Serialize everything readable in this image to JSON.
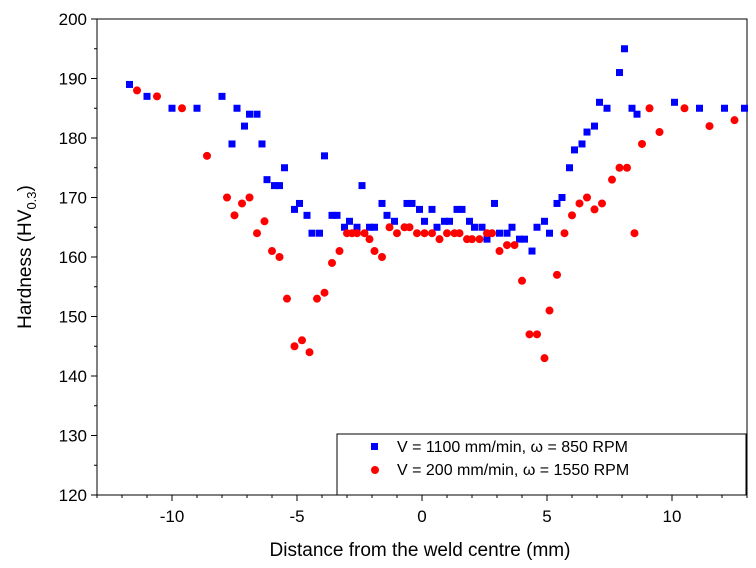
{
  "chart_data": {
    "type": "scatter",
    "title": "",
    "xlabel": "Distance from the weld centre (mm)",
    "ylabel": {
      "main": "Hardness (HV",
      "subscript": "0.3",
      "close": ")"
    },
    "xlim": [
      -13,
      13
    ],
    "ylim": [
      120,
      200
    ],
    "xticks": [
      -10,
      -5,
      0,
      5,
      10
    ],
    "yticks": [
      120,
      130,
      140,
      150,
      160,
      170,
      180,
      190,
      200
    ],
    "xtick_labels": [
      "-10",
      "-5",
      "0",
      "5",
      "10"
    ],
    "ytick_labels": [
      "120",
      "130",
      "140",
      "150",
      "160",
      "170",
      "180",
      "190",
      "200"
    ],
    "grid": false,
    "legend_position": "bottom-right",
    "series": [
      {
        "name": "V = 1100 mm/min, ω = 850 RPM",
        "marker": "square",
        "color": "#0000ff",
        "points": [
          [
            -11.7,
            189
          ],
          [
            -11.0,
            187
          ],
          [
            -10.0,
            185
          ],
          [
            -9.0,
            185
          ],
          [
            -8.0,
            187
          ],
          [
            -7.6,
            179
          ],
          [
            -7.4,
            185
          ],
          [
            -7.1,
            182
          ],
          [
            -6.9,
            184
          ],
          [
            -6.6,
            184
          ],
          [
            -6.4,
            179
          ],
          [
            -6.2,
            173
          ],
          [
            -5.9,
            172
          ],
          [
            -5.7,
            172
          ],
          [
            -5.5,
            175
          ],
          [
            -5.1,
            168
          ],
          [
            -4.9,
            169
          ],
          [
            -4.6,
            167
          ],
          [
            -4.4,
            164
          ],
          [
            -4.1,
            164
          ],
          [
            -3.9,
            177
          ],
          [
            -3.6,
            167
          ],
          [
            -3.4,
            167
          ],
          [
            -3.1,
            165
          ],
          [
            -2.9,
            166
          ],
          [
            -2.6,
            165
          ],
          [
            -2.4,
            172
          ],
          [
            -2.1,
            165
          ],
          [
            -1.9,
            165
          ],
          [
            -1.6,
            169
          ],
          [
            -1.4,
            167
          ],
          [
            -1.1,
            166
          ],
          [
            -0.6,
            169
          ],
          [
            -0.4,
            169
          ],
          [
            -0.1,
            168
          ],
          [
            0.1,
            166
          ],
          [
            0.4,
            168
          ],
          [
            0.6,
            165
          ],
          [
            0.9,
            166
          ],
          [
            1.1,
            166
          ],
          [
            1.4,
            168
          ],
          [
            1.6,
            168
          ],
          [
            1.9,
            166
          ],
          [
            2.1,
            165
          ],
          [
            2.4,
            165
          ],
          [
            2.6,
            163
          ],
          [
            2.9,
            169
          ],
          [
            3.1,
            164
          ],
          [
            3.4,
            164
          ],
          [
            3.6,
            165
          ],
          [
            3.9,
            163
          ],
          [
            4.1,
            163
          ],
          [
            4.4,
            161
          ],
          [
            4.6,
            165
          ],
          [
            4.9,
            166
          ],
          [
            5.1,
            164
          ],
          [
            5.4,
            169
          ],
          [
            5.6,
            170
          ],
          [
            5.9,
            175
          ],
          [
            6.1,
            178
          ],
          [
            6.4,
            179
          ],
          [
            6.6,
            181
          ],
          [
            6.9,
            182
          ],
          [
            7.1,
            186
          ],
          [
            7.4,
            185
          ],
          [
            7.9,
            191
          ],
          [
            8.1,
            195
          ],
          [
            8.4,
            185
          ],
          [
            8.6,
            184
          ],
          [
            10.1,
            186
          ],
          [
            11.1,
            185
          ],
          [
            12.1,
            185
          ],
          [
            12.9,
            185
          ]
        ]
      },
      {
        "name": "V = 200 mm/min, ω = 1550 RPM",
        "marker": "circle",
        "color": "#ff0000",
        "points": [
          [
            -11.4,
            188
          ],
          [
            -10.6,
            187
          ],
          [
            -9.6,
            185
          ],
          [
            -8.6,
            177
          ],
          [
            -7.8,
            170
          ],
          [
            -7.5,
            167
          ],
          [
            -7.2,
            169
          ],
          [
            -6.9,
            170
          ],
          [
            -6.6,
            164
          ],
          [
            -6.3,
            166
          ],
          [
            -6.0,
            161
          ],
          [
            -5.7,
            160
          ],
          [
            -5.4,
            153
          ],
          [
            -5.1,
            145
          ],
          [
            -4.8,
            146
          ],
          [
            -4.5,
            144
          ],
          [
            -4.2,
            153
          ],
          [
            -3.9,
            154
          ],
          [
            -3.6,
            159
          ],
          [
            -3.3,
            161
          ],
          [
            -3.0,
            164
          ],
          [
            -2.8,
            164
          ],
          [
            -2.6,
            164
          ],
          [
            -2.3,
            164
          ],
          [
            -2.1,
            163
          ],
          [
            -1.9,
            161
          ],
          [
            -1.6,
            160
          ],
          [
            -1.3,
            165
          ],
          [
            -1.0,
            164
          ],
          [
            -0.7,
            165
          ],
          [
            -0.5,
            165
          ],
          [
            -0.2,
            164
          ],
          [
            0.1,
            164
          ],
          [
            0.4,
            164
          ],
          [
            0.7,
            163
          ],
          [
            1.0,
            164
          ],
          [
            1.3,
            164
          ],
          [
            1.5,
            164
          ],
          [
            1.8,
            163
          ],
          [
            2.0,
            163
          ],
          [
            2.3,
            163
          ],
          [
            2.6,
            164
          ],
          [
            2.8,
            164
          ],
          [
            3.1,
            161
          ],
          [
            3.4,
            162
          ],
          [
            3.7,
            162
          ],
          [
            4.0,
            156
          ],
          [
            4.3,
            147
          ],
          [
            4.6,
            147
          ],
          [
            4.9,
            143
          ],
          [
            5.1,
            151
          ],
          [
            5.4,
            157
          ],
          [
            5.7,
            164
          ],
          [
            6.0,
            167
          ],
          [
            6.3,
            169
          ],
          [
            6.6,
            170
          ],
          [
            6.9,
            168
          ],
          [
            7.2,
            169
          ],
          [
            7.6,
            173
          ],
          [
            7.9,
            175
          ],
          [
            8.2,
            175
          ],
          [
            8.5,
            164
          ],
          [
            8.8,
            179
          ],
          [
            9.1,
            185
          ],
          [
            9.5,
            181
          ],
          [
            10.5,
            185
          ],
          [
            11.5,
            182
          ],
          [
            12.5,
            183
          ]
        ]
      }
    ]
  }
}
